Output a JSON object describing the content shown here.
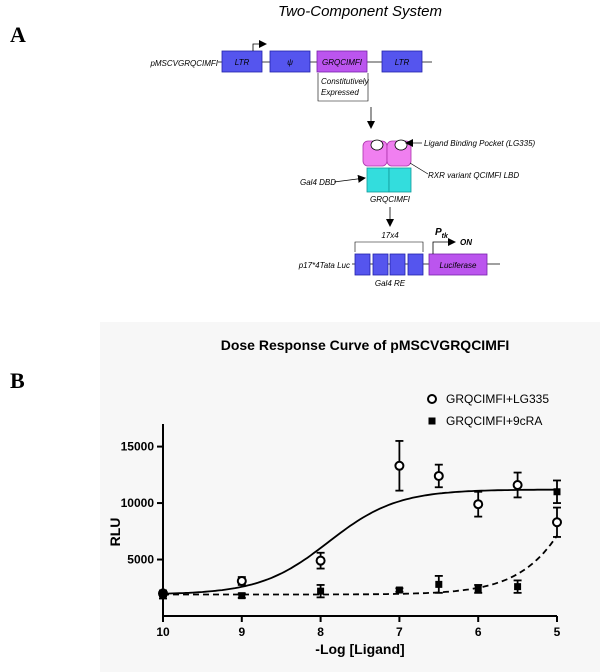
{
  "panel_a": {
    "letter": "A",
    "title": "Two-Component System",
    "vector_name": "pMSCVGRQCIMFI",
    "box_ltr_left": "LTR",
    "box_psi": "ψ",
    "box_gene": "GRQCIMFI",
    "box_ltr_right": "LTR",
    "expression_note_line1": "Constitutively",
    "expression_note_line2": "Expressed",
    "ligand_pocket_label": "Ligand Binding Pocket (LG335)",
    "rxr_label": "RXR variant QCIMFI LBD",
    "gal4_dbd_label": "Gal4 DBD",
    "protein_name": "GRQCIMFI",
    "repeat_label": "17x4",
    "promoter_label": "P",
    "promoter_sub": "tk",
    "on_label": "ON",
    "reporter_name": "p17*4Tata Luc",
    "luciferase_label": "Luciferase",
    "gal4_re_label": "Gal4 RE",
    "colors": {
      "blue": "#5555ee",
      "purple": "#bb55ee",
      "pink": "#f07ff0",
      "cyan": "#33dddd"
    }
  },
  "panel_b": {
    "letter": "B"
  },
  "chart_data": {
    "type": "scatter",
    "title": "Dose Response Curve of pMSCVGRQCIMFI",
    "xlabel": "-Log [Ligand]",
    "ylabel": "RLU",
    "xlim": [
      10,
      5
    ],
    "ylim": [
      0,
      17000
    ],
    "x_ticks": [
      10,
      9,
      8,
      7,
      6,
      5
    ],
    "x_tick_labels": [
      "10",
      "9",
      "8",
      "7",
      "6",
      "5"
    ],
    "y_ticks": [
      5000,
      10000,
      15000
    ],
    "y_tick_labels": [
      "5000",
      "10000",
      "15000"
    ],
    "legend_position": "top-right",
    "series": [
      {
        "name": "GRQCIMFI+LG335",
        "marker": "open-circle",
        "x": [
          10,
          9,
          8,
          7,
          6.5,
          6,
          5.5,
          5
        ],
        "y": [
          2000,
          3100,
          4900,
          13300,
          12400,
          9900,
          11600,
          8300
        ],
        "err": [
          250,
          350,
          700,
          2200,
          1000,
          1100,
          1100,
          1300
        ],
        "fit_line": "solid",
        "fit": {
          "bottom": 1900,
          "top": 11200,
          "log_ec50": -7.9,
          "hill": 1.0
        }
      },
      {
        "name": "GRQCIMFI+9cRA",
        "marker": "filled-square",
        "x": [
          10,
          9,
          8,
          7,
          6.5,
          6,
          5.5,
          5
        ],
        "y": [
          1900,
          1800,
          2200,
          2300,
          2800,
          2400,
          2600,
          11000
        ],
        "err": [
          350,
          200,
          550,
          150,
          750,
          350,
          550,
          1000
        ],
        "fit_line": "dashed",
        "fit": {
          "bottom": 1900,
          "top": 40000,
          "log_ec50": -4.2,
          "hill": 1.0
        }
      }
    ]
  }
}
